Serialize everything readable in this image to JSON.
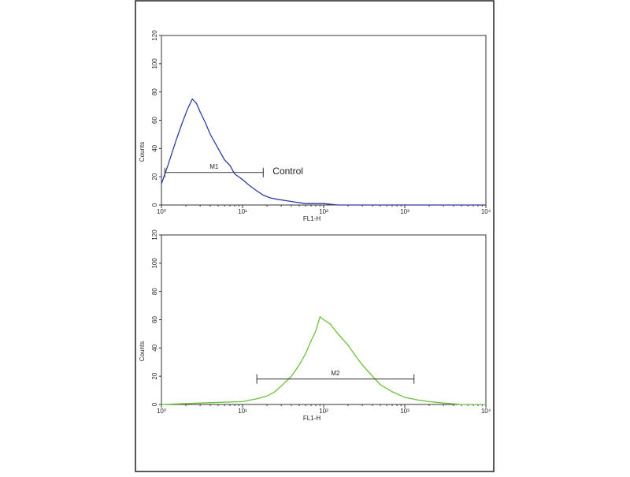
{
  "chart_data": [
    {
      "type": "line",
      "xlabel": "FL1-H",
      "ylabel": "Counts",
      "log_x": true,
      "xlim": [
        1,
        10000
      ],
      "ylim": [
        0,
        120
      ],
      "xticks": [
        {
          "value": 1,
          "label": "10⁰"
        },
        {
          "value": 10,
          "label": "10¹"
        },
        {
          "value": 100,
          "label": "10²"
        },
        {
          "value": 1000,
          "label": "10³"
        },
        {
          "value": 10000,
          "label": "10⁴"
        }
      ],
      "yticks": [
        0,
        20,
        40,
        60,
        80,
        100,
        120
      ],
      "series": [
        {
          "color": "#2b3f9c",
          "x": [
            1,
            1.2,
            1.5,
            1.8,
            2.1,
            2.4,
            2.7,
            3,
            3.5,
            4,
            5,
            6,
            7,
            8,
            10,
            12,
            15,
            18,
            22,
            27,
            35,
            45,
            60,
            80,
            100,
            150,
            300,
            1000,
            3000,
            10000
          ],
          "values": [
            15,
            28,
            45,
            58,
            68,
            75,
            72,
            66,
            58,
            50,
            40,
            32,
            28,
            22,
            18,
            14,
            10,
            7,
            5,
            4,
            3,
            2,
            1,
            1,
            1,
            0,
            0,
            0,
            0,
            0
          ]
        }
      ],
      "markers": [
        {
          "label": "M1",
          "range": [
            1.1,
            18
          ],
          "level": 23
        }
      ],
      "annotation": "Control"
    },
    {
      "type": "line",
      "xlabel": "FL1-H",
      "ylabel": "Counts",
      "log_x": true,
      "xlim": [
        1,
        10000
      ],
      "ylim": [
        0,
        120
      ],
      "xticks": [
        {
          "value": 1,
          "label": "10⁰"
        },
        {
          "value": 10,
          "label": "10¹"
        },
        {
          "value": 100,
          "label": "10²"
        },
        {
          "value": 1000,
          "label": "10³"
        },
        {
          "value": 10000,
          "label": "10⁴"
        }
      ],
      "yticks": [
        0,
        20,
        40,
        60,
        80,
        100,
        120
      ],
      "series": [
        {
          "color": "#6cbf3c",
          "x": [
            1,
            3,
            10,
            15,
            20,
            25,
            30,
            40,
            50,
            60,
            70,
            80,
            90,
            100,
            120,
            150,
            200,
            250,
            300,
            400,
            500,
            700,
            1000,
            1500,
            2000,
            3000,
            5000,
            10000
          ],
          "values": [
            0,
            1,
            2,
            4,
            6,
            9,
            13,
            20,
            28,
            36,
            45,
            52,
            62,
            60,
            57,
            50,
            42,
            34,
            28,
            20,
            14,
            9,
            5,
            3,
            2,
            1,
            0,
            0
          ]
        }
      ],
      "markers": [
        {
          "label": "M2",
          "range": [
            15,
            1300
          ],
          "level": 18
        }
      ]
    }
  ]
}
